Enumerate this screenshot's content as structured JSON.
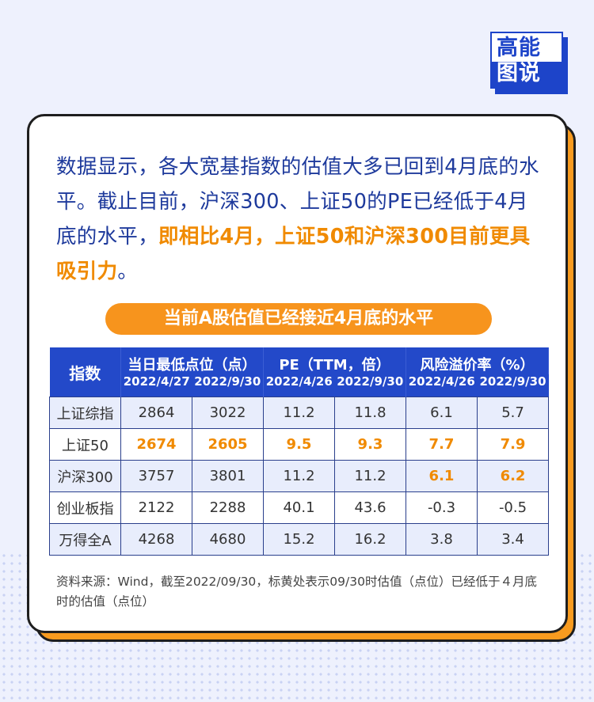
{
  "logo": {
    "line1": "高能",
    "line2": "图说"
  },
  "intro": {
    "normal": "数据显示，各大宽基指数的估值大多已回到4月底的水平。截止目前，沪深300、上证50的PE已经低于4月底的水平，",
    "highlight": "即相比4月，上证50和沪深300目前更具吸引力",
    "end": "。"
  },
  "table_title": "当前A股估值已经接近4月底的水平",
  "table": {
    "index_header": "指数",
    "groups": [
      "当日最低点位（点）",
      "PE（TTM，倍）",
      "风险溢价率（%）"
    ],
    "dates": [
      "2022/4/27",
      "2022/9/30",
      "2022/4/26",
      "2022/9/30",
      "2022/4/26",
      "2022/9/30"
    ],
    "rows": [
      {
        "name": "上证综指",
        "values": [
          "2864",
          "3022",
          "11.2",
          "11.8",
          "6.1",
          "5.7"
        ]
      },
      {
        "name": "上证50",
        "values": [
          "2674",
          "2605",
          "9.5",
          "9.3",
          "7.7",
          "7.9"
        ]
      },
      {
        "name": "沪深300",
        "values": [
          "3757",
          "3801",
          "11.2",
          "11.2",
          "6.1",
          "6.2"
        ]
      },
      {
        "name": "创业板指",
        "values": [
          "2122",
          "2288",
          "40.1",
          "43.6",
          "-0.3",
          "-0.5"
        ]
      },
      {
        "name": "万得全A",
        "values": [
          "4268",
          "4680",
          "15.2",
          "16.2",
          "3.8",
          "3.4"
        ]
      }
    ]
  },
  "note": "资料来源：Wind，截至2022/09/30，标黄处表示09/30时估值（点位）已经低于４月底时的估值（点位）",
  "colors": {
    "primary": "#2349c9",
    "accent": "#f7941d",
    "text": "#1e3a9c"
  }
}
